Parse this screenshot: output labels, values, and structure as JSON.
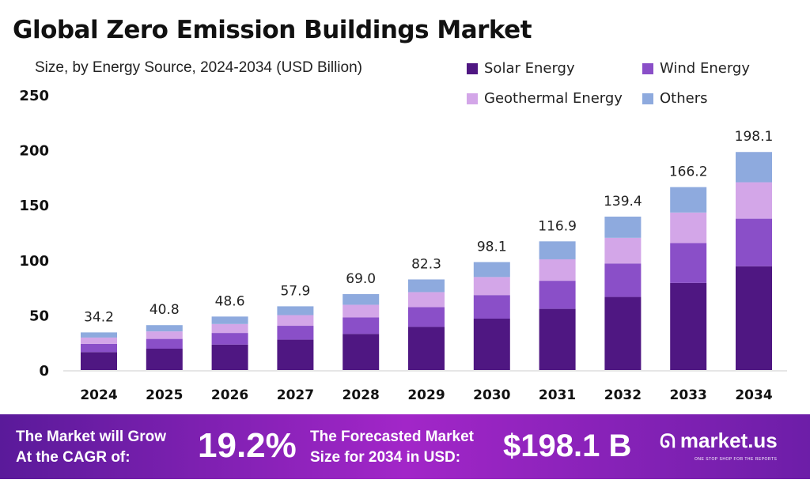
{
  "chart_data": {
    "type": "bar",
    "stacked": true,
    "title": "Global Zero Emission Buildings Market",
    "subtitle": "Size, by Energy Source, 2024-2034 (USD Billion)",
    "categories": [
      "2024",
      "2025",
      "2026",
      "2027",
      "2028",
      "2029",
      "2030",
      "2031",
      "2032",
      "2033",
      "2034"
    ],
    "series": [
      {
        "name": "Solar Energy",
        "color": "#4f1782",
        "values": [
          16.3,
          19.4,
          23.1,
          27.6,
          32.8,
          39.2,
          46.7,
          55.6,
          66.4,
          79.1,
          94.3
        ]
      },
      {
        "name": "Wind Energy",
        "color": "#8a4fc8",
        "values": [
          7.5,
          8.9,
          10.6,
          12.6,
          15.0,
          17.9,
          21.4,
          25.5,
          30.4,
          36.2,
          43.2
        ]
      },
      {
        "name": "Geothermal Energy",
        "color": "#d3a6e8",
        "values": [
          5.7,
          6.8,
          8.1,
          9.7,
          11.5,
          13.7,
          16.4,
          19.5,
          23.3,
          27.8,
          33.1
        ]
      },
      {
        "name": "Others",
        "color": "#8eaade",
        "values": [
          4.7,
          5.7,
          6.8,
          8.0,
          9.7,
          11.5,
          13.6,
          16.3,
          19.3,
          23.1,
          27.5
        ]
      }
    ],
    "totals": [
      "34.2",
      "40.8",
      "48.6",
      "57.9",
      "69.0",
      "82.3",
      "98.1",
      "116.9",
      "139.4",
      "166.2",
      "198.1"
    ],
    "ylim": [
      0,
      250
    ],
    "yticks": [
      "0",
      "50",
      "100",
      "150",
      "200",
      "250"
    ],
    "grid": false,
    "legend_position": "top-right"
  },
  "footer": {
    "cagr_text_1": "The Market will Grow",
    "cagr_text_2": "At the CAGR of:",
    "cagr_value": "19.2%",
    "forecast_text_1": "The Forecasted Market",
    "forecast_text_2": "Size for 2034 in USD:",
    "forecast_value": "$198.1 B",
    "brand": "market.us",
    "tagline": "ONE STOP SHOP FOR THE REPORTS"
  }
}
